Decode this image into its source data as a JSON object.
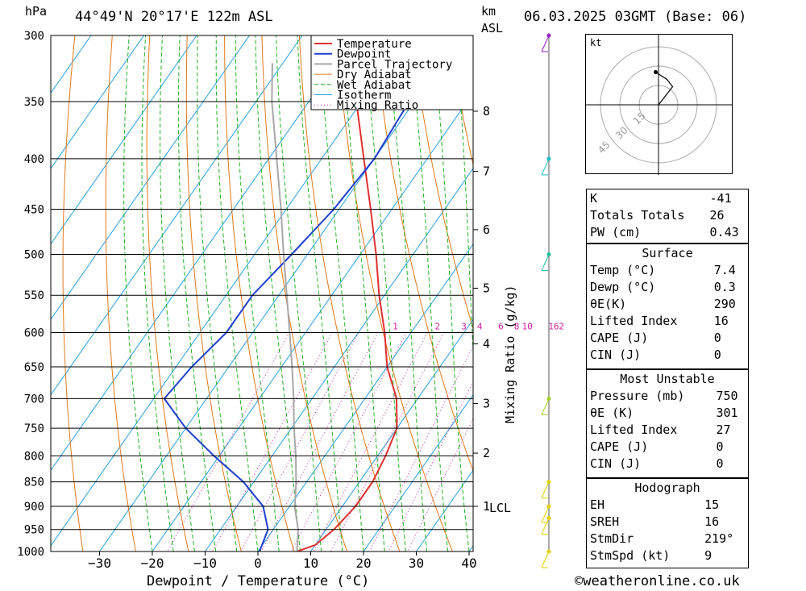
{
  "header": {
    "location": "44°49'N 20°17'E 122m ASL",
    "datetime": "06.03.2025 03GMT (Base: 06)",
    "hpa_unit": "hPa",
    "km_unit": "km",
    "asl_unit": "ASL"
  },
  "axes": {
    "xlabel": "Dewpoint / Temperature (°C)",
    "mixing_label": "Mixing Ratio (g/kg)"
  },
  "footer": {
    "credit": "©weatheronline.co.uk"
  },
  "colors": {
    "temperature": "#e03030",
    "dewpoint": "#1f3fcf",
    "parcel": "#a8a8a8",
    "dry_adiabat": "#e07a1a",
    "wet_adiabat": "#22b022",
    "isotherm": "#2a9fe0",
    "mixing_ratio": "#cc1fa0"
  },
  "chart_data": {
    "type": "line",
    "title": "44°49'N 20°17'E 122m ASL",
    "xlabel": "Dewpoint / Temperature (°C)",
    "ylabel": "hPa",
    "xlim": [
      -40,
      40
    ],
    "ylim": [
      1000,
      300
    ],
    "y_log_scale": true,
    "x_ticks": [
      "−30",
      "−20",
      "−10",
      "0",
      "10",
      "20",
      "30",
      "40"
    ],
    "x_tick_values": [
      -30,
      -20,
      -10,
      0,
      10,
      20,
      30,
      40
    ],
    "pressure_levels": [
      300,
      350,
      400,
      450,
      500,
      550,
      600,
      650,
      700,
      750,
      800,
      850,
      900,
      950,
      1000
    ],
    "km_ticks": [
      {
        "label": "8",
        "p": 358
      },
      {
        "label": "7",
        "p": 412
      },
      {
        "label": "6",
        "p": 472
      },
      {
        "label": "5",
        "p": 541
      },
      {
        "label": "4",
        "p": 616
      },
      {
        "label": "3",
        "p": 708
      },
      {
        "label": "2",
        "p": 795
      },
      {
        "label": "1",
        "p": 900
      }
    ],
    "lcl": {
      "label": "LCL",
      "p": 903
    },
    "mixing_ratio_labels": [
      {
        "label": "1",
        "t": -3
      },
      {
        "label": "2",
        "t": 5
      },
      {
        "label": "3",
        "t": 10
      },
      {
        "label": "4",
        "t": 13
      },
      {
        "label": "6",
        "t": 17
      },
      {
        "label": "8",
        "t": 20
      },
      {
        "label": "10",
        "t": 22
      },
      {
        "label": "16",
        "t": 27
      },
      {
        "label": "20",
        "t": 29
      },
      {
        "label": "25",
        "t": 31
      }
    ],
    "legend": [
      "Temperature",
      "Dewpoint",
      "Parcel Trajectory",
      "Dry Adiabat",
      "Wet Adiabat",
      "Isotherm",
      "Mixing Ratio"
    ],
    "legend_position": "top-right",
    "series": [
      {
        "name": "Temperature",
        "points": [
          [
            1000,
            7.4
          ],
          [
            985,
            10
          ],
          [
            950,
            11.5
          ],
          [
            900,
            12.5
          ],
          [
            850,
            12.5
          ],
          [
            800,
            11.5
          ],
          [
            750,
            10
          ],
          [
            700,
            6
          ],
          [
            650,
            0
          ],
          [
            600,
            -5
          ],
          [
            550,
            -11
          ],
          [
            500,
            -17
          ],
          [
            450,
            -24
          ],
          [
            400,
            -32
          ],
          [
            350,
            -41
          ],
          [
            300,
            -51
          ]
        ]
      },
      {
        "name": "Dewpoint",
        "points": [
          [
            1000,
            0.3
          ],
          [
            950,
            -1
          ],
          [
            900,
            -5
          ],
          [
            850,
            -12
          ],
          [
            800,
            -21
          ],
          [
            750,
            -30
          ],
          [
            700,
            -38
          ],
          [
            650,
            -37
          ],
          [
            600,
            -35
          ],
          [
            550,
            -35
          ],
          [
            500,
            -33
          ],
          [
            450,
            -31
          ],
          [
            400,
            -30
          ],
          [
            350,
            -31
          ],
          [
            300,
            -42
          ]
        ]
      },
      {
        "name": "Parcel Trajectory",
        "points": [
          [
            1000,
            7.4
          ],
          [
            950,
            4.7
          ],
          [
            903,
            1.2
          ],
          [
            850,
            -2
          ],
          [
            800,
            -5.5
          ],
          [
            750,
            -9.5
          ],
          [
            700,
            -13.5
          ],
          [
            650,
            -18
          ],
          [
            600,
            -23
          ],
          [
            550,
            -28.5
          ],
          [
            500,
            -34.5
          ],
          [
            450,
            -41
          ],
          [
            400,
            -48.5
          ],
          [
            350,
            -57
          ],
          [
            320,
            -62
          ]
        ]
      }
    ]
  },
  "wind_barbs": [
    {
      "p": 300,
      "color": "#9b1fd0"
    },
    {
      "p": 400,
      "color": "#1fc0c0"
    },
    {
      "p": 500,
      "color": "#1fc0a0"
    },
    {
      "p": 700,
      "color": "#a0d020"
    },
    {
      "p": 850,
      "color": "#e0d000"
    },
    {
      "p": 900,
      "color": "#e0d000"
    },
    {
      "p": 925,
      "color": "#e0d000"
    },
    {
      "p": 1000,
      "color": "#e0d000"
    }
  ],
  "hodograph": {
    "unit": "kt",
    "rings": [
      "15",
      "30",
      "45"
    ],
    "points": [
      [
        -1,
        9
      ],
      [
        3,
        7
      ],
      [
        5,
        5
      ],
      [
        2,
        2
      ],
      [
        0,
        0
      ]
    ]
  },
  "indices": {
    "k_label": "K",
    "k_value": "-41",
    "tt_label": "Totals Totals",
    "tt_value": "26",
    "pw_label": "PW (cm)",
    "pw_value": "0.43"
  },
  "surface": {
    "title": "Surface",
    "temp_label": "Temp (°C)",
    "temp_value": "7.4",
    "dewp_label": "Dewp (°C)",
    "dewp_value": "0.3",
    "theta_label": "θE(K)",
    "theta_value": "290",
    "li_label": "Lifted Index",
    "li_value": "16",
    "cape_label": "CAPE (J)",
    "cape_value": "0",
    "cin_label": "CIN (J)",
    "cin_value": "0"
  },
  "most_unstable": {
    "title": "Most Unstable",
    "pressure_label": "Pressure (mb)",
    "pressure_value": "750",
    "theta_label": "θE (K)",
    "theta_value": "301",
    "li_label": "Lifted Index",
    "li_value": "27",
    "cape_label": "CAPE (J)",
    "cape_value": "0",
    "cin_label": "CIN (J)",
    "cin_value": "0"
  },
  "hodograph_table": {
    "title": "Hodograph",
    "eh_label": "EH",
    "eh_value": "15",
    "sreh_label": "SREH",
    "sreh_value": "16",
    "stmdir_label": "StmDir",
    "stmdir_value": "219°",
    "stmspd_label": "StmSpd (kt)",
    "stmspd_value": "9"
  }
}
